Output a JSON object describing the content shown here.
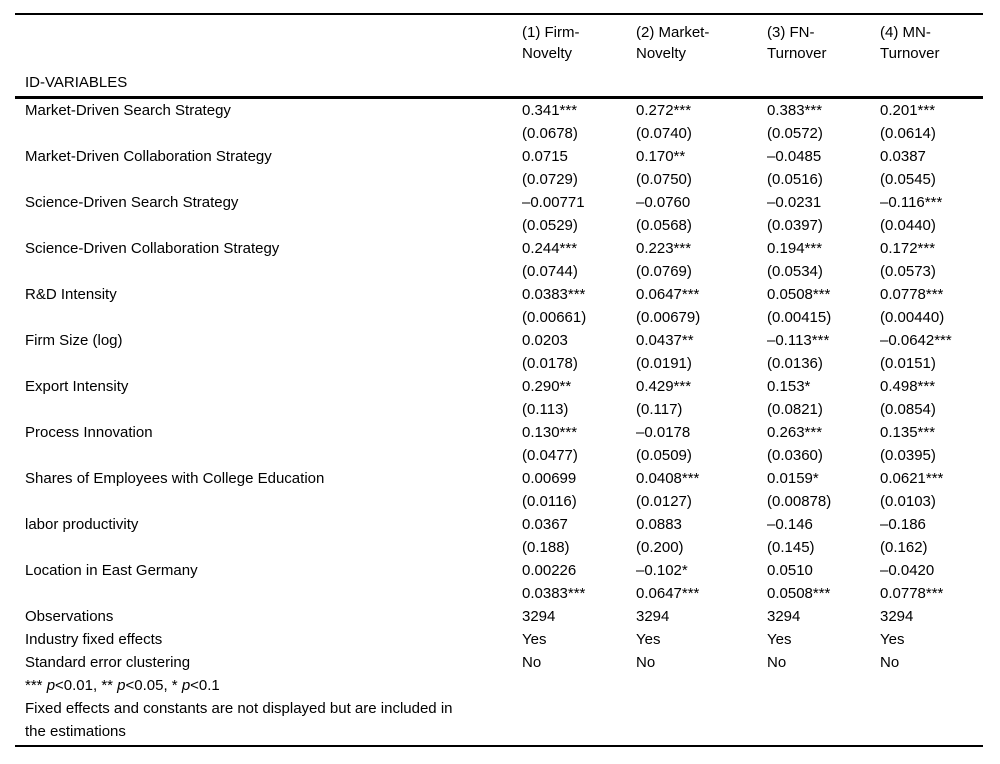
{
  "table": {
    "id_label": "ID-VARIABLES",
    "columns": [
      {
        "line1": "(1) Firm-",
        "line2": "Novelty"
      },
      {
        "line1": "(2) Market-",
        "line2": "Novelty"
      },
      {
        "line1": "(3) FN-",
        "line2": "Turnover"
      },
      {
        "line1": "(4) MN-",
        "line2": "Turnover"
      }
    ],
    "rows": [
      {
        "label": "Market-Driven Search Strategy",
        "coefs": [
          "0.341***",
          "0.272***",
          "0.383***",
          "0.201***"
        ],
        "line2": [
          "(0.0678)",
          "(0.0740)",
          "(0.0572)",
          "(0.0614)"
        ]
      },
      {
        "label": "Market-Driven Collaboration Strategy",
        "coefs": [
          "0.0715",
          "0.170**",
          "–0.0485",
          "0.0387"
        ],
        "line2": [
          "(0.0729)",
          "(0.0750)",
          "(0.0516)",
          "(0.0545)"
        ]
      },
      {
        "label": "Science-Driven Search Strategy",
        "coefs": [
          "–0.00771",
          "–0.0760",
          "–0.0231",
          "–0.116***"
        ],
        "line2": [
          "(0.0529)",
          "(0.0568)",
          "(0.0397)",
          "(0.0440)"
        ]
      },
      {
        "label": "Science-Driven Collaboration Strategy",
        "coefs": [
          "0.244***",
          "0.223***",
          "0.194***",
          "0.172***"
        ],
        "line2": [
          "(0.0744)",
          "(0.0769)",
          "(0.0534)",
          "(0.0573)"
        ]
      },
      {
        "label": "R&D Intensity",
        "coefs": [
          "0.0383***",
          "0.0647***",
          "0.0508***",
          "0.0778***"
        ],
        "line2": [
          "(0.00661)",
          "(0.00679)",
          "(0.00415)",
          "(0.00440)"
        ]
      },
      {
        "label": "Firm Size (log)",
        "coefs": [
          "0.0203",
          "0.0437**",
          "–0.113***",
          "–0.0642***"
        ],
        "line2": [
          "(0.0178)",
          "(0.0191)",
          "(0.0136)",
          "(0.0151)"
        ]
      },
      {
        "label": "Export Intensity",
        "coefs": [
          "0.290**",
          "0.429***",
          "0.153*",
          "0.498***"
        ],
        "line2": [
          "(0.113)",
          "(0.117)",
          "(0.0821)",
          "(0.0854)"
        ]
      },
      {
        "label": "Process Innovation",
        "coefs": [
          "0.130***",
          "–0.0178",
          "0.263***",
          "0.135***"
        ],
        "line2": [
          "(0.0477)",
          "(0.0509)",
          "(0.0360)",
          "(0.0395)"
        ]
      },
      {
        "label": "Shares of Employees with College Education",
        "coefs": [
          "0.00699",
          "0.0408***",
          "0.0159*",
          "0.0621***"
        ],
        "line2": [
          "(0.0116)",
          "(0.0127)",
          "(0.00878)",
          "(0.0103)"
        ]
      },
      {
        "label": "labor productivity",
        "coefs": [
          "0.0367",
          "0.0883",
          "–0.146",
          "–0.186"
        ],
        "line2": [
          "(0.188)",
          "(0.200)",
          "(0.145)",
          "(0.162)"
        ]
      },
      {
        "label": "Location in East Germany",
        "coefs": [
          "0.00226",
          "–0.102*",
          "0.0510",
          "–0.0420"
        ],
        "line2": [
          "0.0383***",
          "0.0647***",
          "0.0508***",
          "0.0778***"
        ]
      }
    ],
    "summary_rows": [
      {
        "label": "Observations",
        "values": [
          "3294",
          "3294",
          "3294",
          "3294"
        ]
      },
      {
        "label": "Industry fixed effects",
        "values": [
          "Yes",
          "Yes",
          "Yes",
          "Yes"
        ]
      },
      {
        "label": "Standard error clustering",
        "values": [
          "No",
          "No",
          "No",
          "No"
        ]
      }
    ],
    "notes": {
      "significance_segments": [
        {
          "t": "*** ",
          "i": false
        },
        {
          "t": "p",
          "i": true
        },
        {
          "t": "<0.01, ** ",
          "i": false
        },
        {
          "t": "p",
          "i": true
        },
        {
          "t": "<0.05, * ",
          "i": false
        },
        {
          "t": "p",
          "i": true
        },
        {
          "t": "<0.1",
          "i": false
        }
      ],
      "fixed_line1": "Fixed effects and constants are not displayed but are included in",
      "fixed_line2": "the estimations"
    },
    "colors": {
      "rule": "#000000",
      "text": "#000000",
      "background": "#ffffff"
    }
  }
}
